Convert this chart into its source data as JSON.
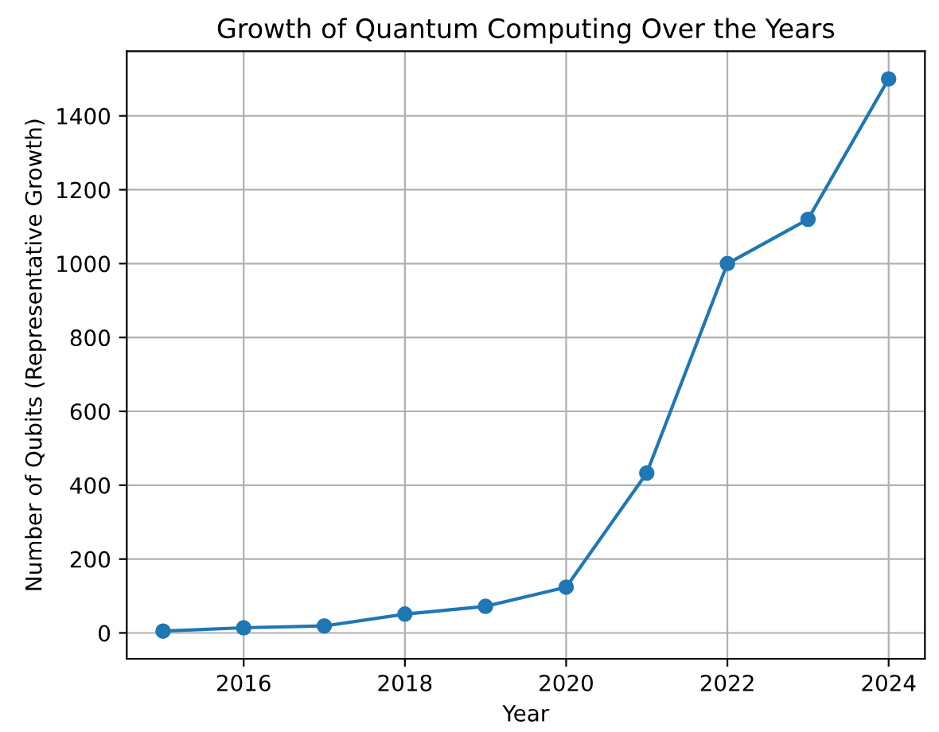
{
  "chart_data": {
    "type": "line",
    "title": "Growth of Quantum Computing Over the Years",
    "xlabel": "Year",
    "ylabel": "Number of Qubits (Representative Growth)",
    "x": [
      2015,
      2016,
      2017,
      2018,
      2019,
      2020,
      2021,
      2022,
      2023,
      2024
    ],
    "series": [
      {
        "color": "#1f77b4",
        "values": [
          5,
          14,
          19,
          51,
          72,
          124,
          433,
          1000,
          1120,
          1500
        ]
      }
    ],
    "xlim": [
      2014.55,
      2024.45
    ],
    "xticks": [
      2016,
      2018,
      2020,
      2022,
      2024
    ],
    "ylim": [
      -70,
      1575
    ],
    "yticks": [
      0,
      200,
      400,
      600,
      800,
      1000,
      1200,
      1400
    ],
    "grid": true,
    "marker": "circle",
    "line_style": "solid",
    "legend": false
  }
}
